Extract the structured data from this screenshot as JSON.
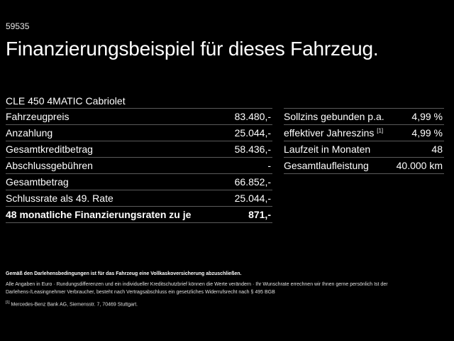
{
  "header": {
    "code": "59535",
    "title": "Finanzierungsbeispiel für dieses Fahrzeug.",
    "model": "CLE 450 4MATIC Cabriolet"
  },
  "left_table": {
    "rows": [
      {
        "label": "Fahrzeugpreis",
        "value": "83.480,-"
      },
      {
        "label": "Anzahlung",
        "value": "25.044,-"
      },
      {
        "label": "Gesamtkreditbetrag",
        "value": "58.436,-"
      },
      {
        "label": "Abschlussgebühren",
        "value": "-"
      },
      {
        "label": "Gesamtbetrag",
        "value": "66.852,-"
      },
      {
        "label": "Schlussrate als 49. Rate",
        "value": "25.044,-"
      },
      {
        "label": "48 monatliche Finanzierungsraten zu je",
        "value": "871,-"
      }
    ]
  },
  "right_table": {
    "rows": [
      {
        "label": "Sollzins gebunden p.a.",
        "sup": "",
        "value": "4,99 %"
      },
      {
        "label": "effektiver Jahreszins",
        "sup": "[1]",
        "value": "4,99 %"
      },
      {
        "label": "Laufzeit in Monaten",
        "sup": "",
        "value": "48"
      },
      {
        "label": "Gesamtlaufleistung",
        "sup": "",
        "value": "40.000 km"
      }
    ]
  },
  "notes": {
    "insurance": "Gemäß den Darlehensbedingungen ist für das Fahrzeug eine Vollkaskoversicherung abzuschließen.",
    "disclaimer": "Alle Angaben in Euro · Rundungsdifferenzen und ein individueller Kreditschutzbrief können die Werte verändern · Ihr Wunschrate errechnen wir Ihnen gerne persönlich Ist der Darlehens-/Leasingnehmer Verbraucher, besteht nach Vertragsabschluss ein gesetzliches Widerrufsrecht nach § 495 BGB",
    "footnote_marker": "[1]",
    "footnote_text": "Mercedes-Benz Bank AG, Siemensstr. 7, 70469 Stuttgart."
  }
}
